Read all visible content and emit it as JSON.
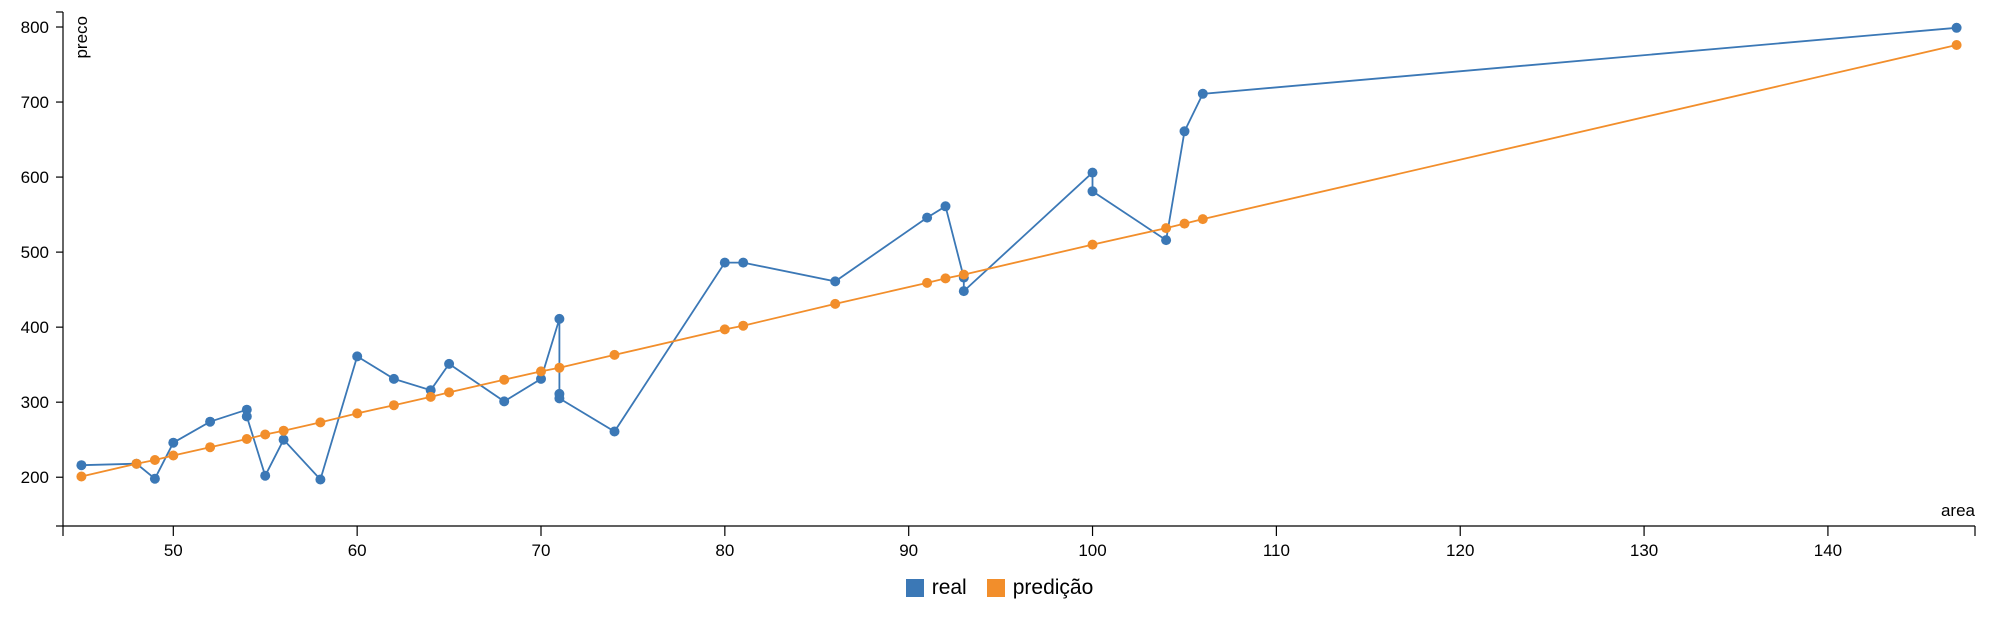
{
  "chart_data": {
    "type": "line",
    "xlabel": "area",
    "ylabel": "preco",
    "xlim": [
      44,
      148
    ],
    "ylim": [
      135,
      820
    ],
    "xticks": [
      50,
      60,
      70,
      80,
      90,
      100,
      110,
      120,
      130,
      140
    ],
    "yticks": [
      200,
      300,
      400,
      500,
      600,
      700,
      800
    ],
    "grid": false,
    "legend_position": "bottom-center",
    "series": [
      {
        "name": "real",
        "color": "#3b78b6",
        "points": [
          [
            45,
            216
          ],
          [
            48,
            218
          ],
          [
            49,
            198
          ],
          [
            50,
            246
          ],
          [
            52,
            274
          ],
          [
            54,
            290
          ],
          [
            54,
            281
          ],
          [
            55,
            202
          ],
          [
            56,
            250
          ],
          [
            58,
            197
          ],
          [
            60,
            361
          ],
          [
            62,
            331
          ],
          [
            64,
            316
          ],
          [
            65,
            351
          ],
          [
            68,
            301
          ],
          [
            70,
            331
          ],
          [
            71,
            411
          ],
          [
            71,
            311
          ],
          [
            71,
            305
          ],
          [
            74,
            261
          ],
          [
            80,
            486
          ],
          [
            81,
            486
          ],
          [
            86,
            461
          ],
          [
            91,
            546
          ],
          [
            92,
            561
          ],
          [
            93,
            466
          ],
          [
            93,
            448
          ],
          [
            100,
            606
          ],
          [
            100,
            581
          ],
          [
            104,
            516
          ],
          [
            105,
            661
          ],
          [
            106,
            711
          ],
          [
            147,
            799
          ]
        ]
      },
      {
        "name": "predição",
        "color": "#f28e2b",
        "points": [
          [
            45,
            201
          ],
          [
            48,
            218
          ],
          [
            49,
            223
          ],
          [
            50,
            229
          ],
          [
            52,
            240
          ],
          [
            54,
            251
          ],
          [
            55,
            257
          ],
          [
            56,
            262
          ],
          [
            58,
            273
          ],
          [
            60,
            285
          ],
          [
            62,
            296
          ],
          [
            64,
            307
          ],
          [
            65,
            313
          ],
          [
            68,
            330
          ],
          [
            70,
            341
          ],
          [
            71,
            346
          ],
          [
            74,
            363
          ],
          [
            80,
            397
          ],
          [
            81,
            402
          ],
          [
            86,
            431
          ],
          [
            91,
            459
          ],
          [
            92,
            465
          ],
          [
            93,
            470
          ],
          [
            100,
            510
          ],
          [
            104,
            532
          ],
          [
            105,
            538
          ],
          [
            106,
            544
          ],
          [
            147,
            776
          ]
        ]
      }
    ]
  }
}
